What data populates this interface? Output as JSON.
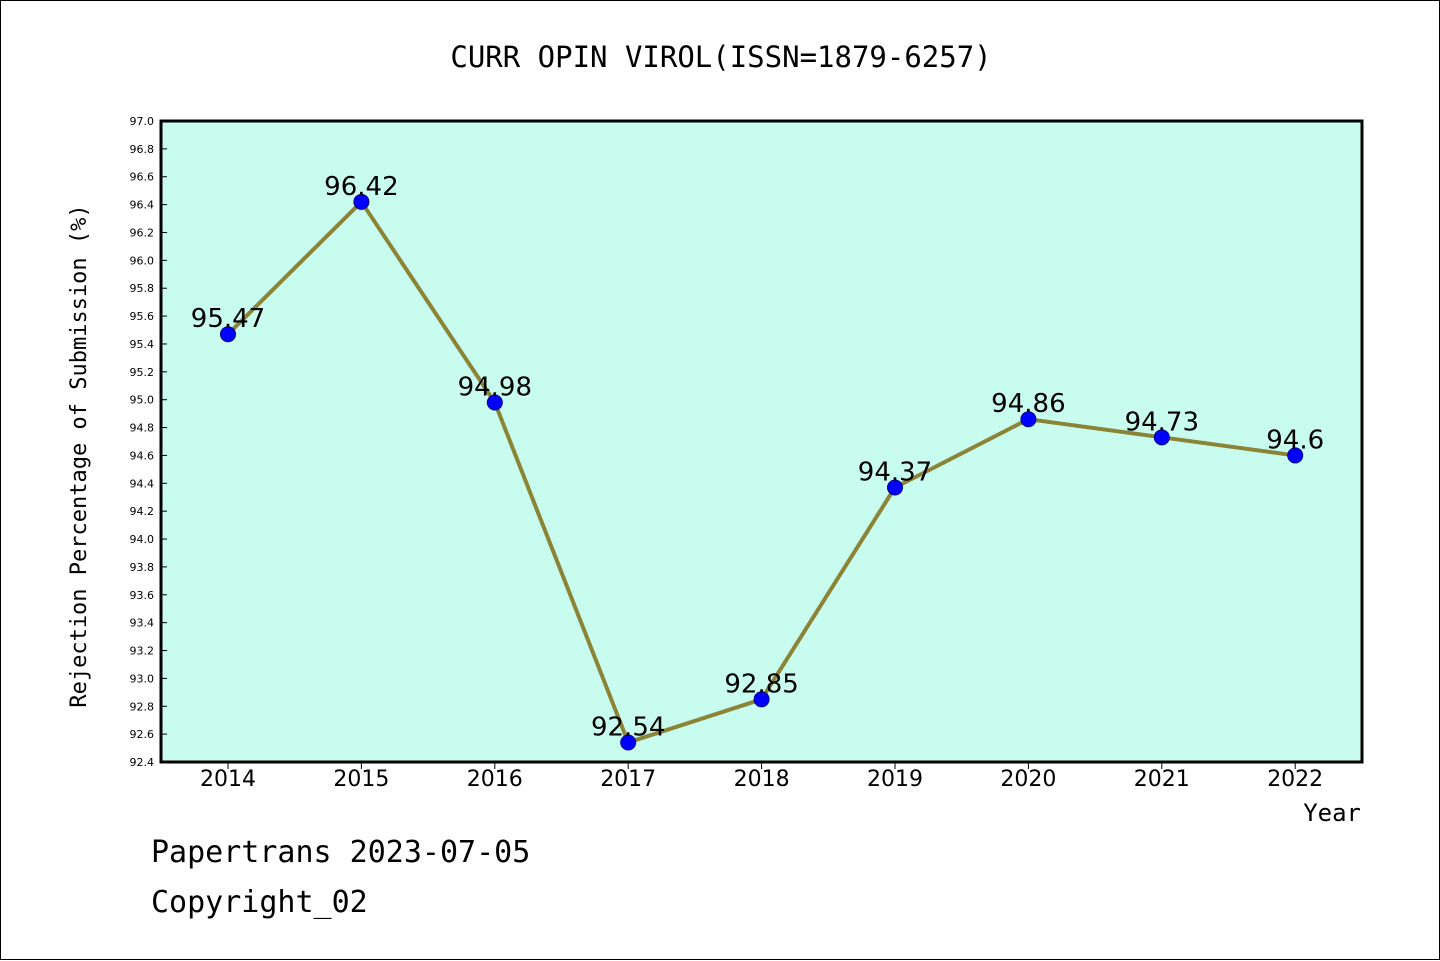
{
  "chart_data": {
    "type": "line",
    "title": "CURR OPIN VIROL(ISSN=1879-6257)",
    "xlabel": "Year",
    "ylabel": "Rejection Percentage of Submission (%)",
    "categories": [
      "2014",
      "2015",
      "2016",
      "2017",
      "2018",
      "2019",
      "2020",
      "2021",
      "2022"
    ],
    "series": [
      {
        "values": [
          95.47,
          96.42,
          94.98,
          92.54,
          92.85,
          94.37,
          94.86,
          94.73,
          94.6
        ],
        "labels": [
          "95.47",
          "96.42",
          "94.98",
          "92.54",
          "92.85",
          "94.37",
          "94.86",
          "94.73",
          "94.6"
        ]
      }
    ],
    "ylim": [
      92.4,
      97.0
    ],
    "ytick_step": 0.2,
    "grid": false,
    "colors": {
      "plot_background": "#c8fcee",
      "line": "#8b8436",
      "marker": "#0000ff",
      "marker_edge": "#00008b"
    }
  },
  "footer": {
    "source": "Papertrans 2023-07-05",
    "copyright": "Copyright_02"
  }
}
